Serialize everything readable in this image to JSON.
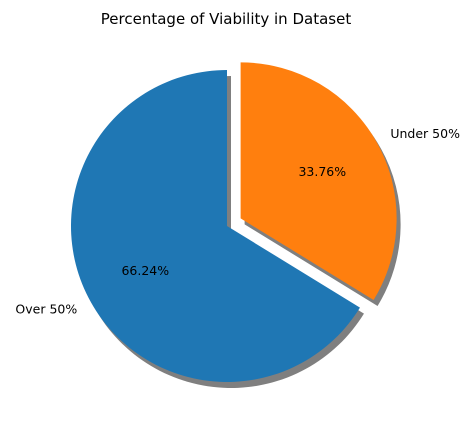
{
  "chart_data": {
    "type": "pie",
    "title": "Percentage of Viability in Dataset",
    "slices": [
      {
        "label": "Over 50%",
        "value": 66.24,
        "pct_label": "66.24%",
        "color": "#1f77b4",
        "exploded": false
      },
      {
        "label": "Under 50%",
        "value": 33.76,
        "pct_label": "33.76%",
        "color": "#ff7f0e",
        "exploded": true
      }
    ],
    "start_angle_deg": 90,
    "counterclockwise": true,
    "shadow": true,
    "shadow_color": "#7f7f7f"
  }
}
